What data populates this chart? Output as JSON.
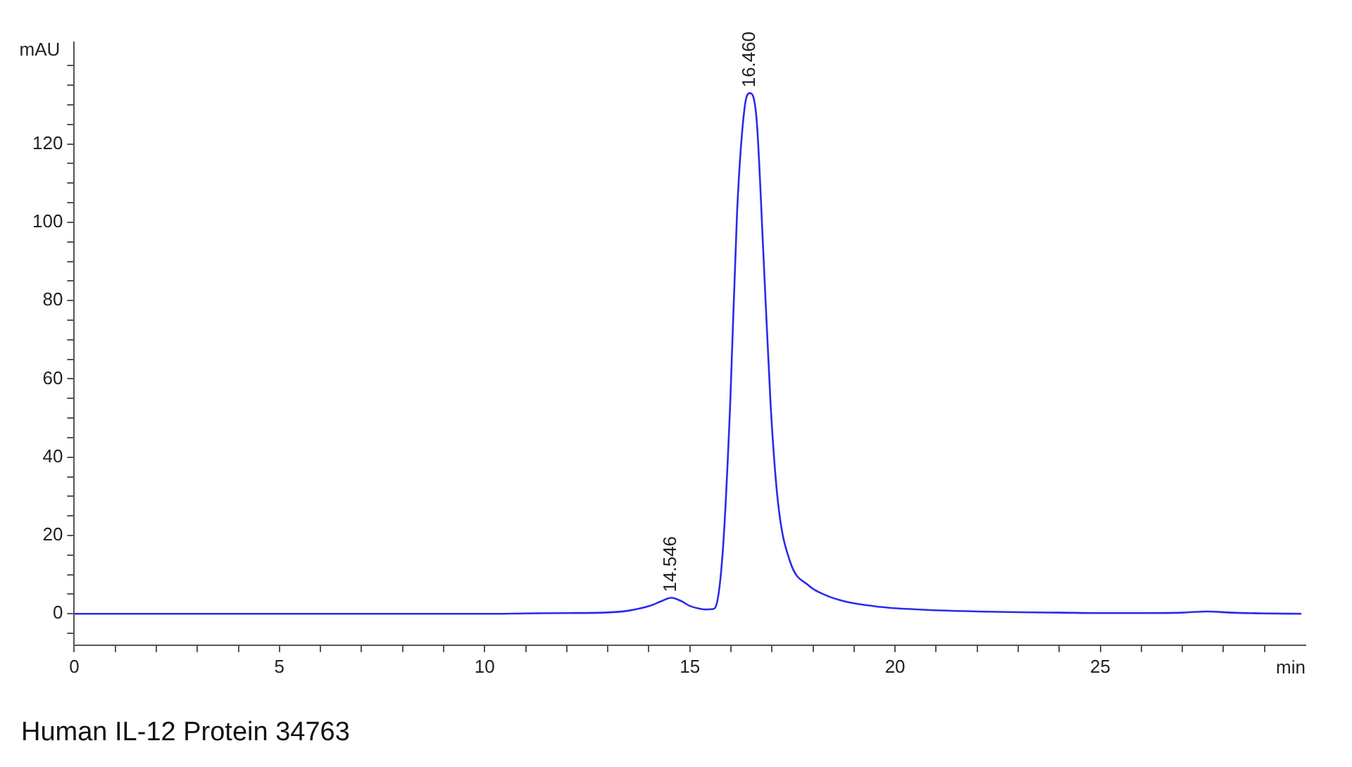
{
  "chart_data": {
    "type": "line",
    "xlabel": "min",
    "ylabel": "mAU",
    "xlim": [
      0,
      30
    ],
    "ylim": [
      -8,
      146
    ],
    "xticks": [
      0,
      {
        "value": 1,
        "label": null
      },
      {
        "value": 2,
        "label": null
      },
      {
        "value": 3,
        "label": null
      },
      {
        "value": 4,
        "label": null
      },
      5,
      {
        "value": 6,
        "label": null
      },
      {
        "value": 7,
        "label": null
      },
      {
        "value": 8,
        "label": null
      },
      {
        "value": 9,
        "label": null
      },
      10,
      {
        "value": 11,
        "label": null
      },
      {
        "value": 12,
        "label": null
      },
      {
        "value": 13,
        "label": null
      },
      {
        "value": 14,
        "label": null
      },
      15,
      {
        "value": 16,
        "label": null
      },
      {
        "value": 17,
        "label": null
      },
      {
        "value": 18,
        "label": null
      },
      {
        "value": 19,
        "label": null
      },
      20,
      {
        "value": 21,
        "label": null
      },
      {
        "value": 22,
        "label": null
      },
      {
        "value": 23,
        "label": null
      },
      {
        "value": 24,
        "label": null
      },
      25,
      {
        "value": 26,
        "label": null
      },
      {
        "value": 27,
        "label": null
      },
      {
        "value": 28,
        "label": null
      },
      {
        "value": 29,
        "label": null
      }
    ],
    "yticks": [
      {
        "value": -5,
        "label": null
      },
      0,
      {
        "value": 5,
        "label": null
      },
      {
        "value": 10,
        "label": null
      },
      {
        "value": 15,
        "label": null
      },
      20,
      {
        "value": 25,
        "label": null
      },
      {
        "value": 30,
        "label": null
      },
      {
        "value": 35,
        "label": null
      },
      40,
      {
        "value": 45,
        "label": null
      },
      {
        "value": 50,
        "label": null
      },
      {
        "value": 55,
        "label": null
      },
      60,
      {
        "value": 65,
        "label": null
      },
      {
        "value": 70,
        "label": null
      },
      {
        "value": 75,
        "label": null
      },
      80,
      {
        "value": 85,
        "label": null
      },
      {
        "value": 90,
        "label": null
      },
      {
        "value": 95,
        "label": null
      },
      100,
      {
        "value": 105,
        "label": null
      },
      {
        "value": 110,
        "label": null
      },
      {
        "value": 115,
        "label": null
      },
      120,
      {
        "value": 125,
        "label": null
      },
      {
        "value": 130,
        "label": null
      },
      {
        "value": 135,
        "label": null
      },
      {
        "value": 140,
        "label": null
      }
    ],
    "grid": false,
    "legend": false,
    "marker": "none",
    "line_style": "solid",
    "series": [
      {
        "color": "#2b2bea",
        "x": [
          0,
          2,
          4,
          6,
          8,
          10,
          11,
          12,
          12.9,
          13.5,
          14.05,
          14.3,
          14.546,
          14.8,
          14.98,
          15.2,
          15.39,
          15.55,
          15.62,
          15.8,
          15.98,
          16.15,
          16.33,
          16.46,
          16.62,
          16.8,
          16.97,
          17.15,
          17.44,
          17.91,
          18.3,
          18.73,
          19.3,
          19.9,
          21,
          22,
          23,
          24,
          25,
          26,
          27,
          27.6,
          28.2,
          29,
          29.9
        ],
        "values": [
          0,
          0,
          0,
          0,
          0,
          0,
          0.1,
          0.2,
          0.3,
          0.8,
          2.1,
          3.2,
          4.1,
          3.2,
          2.1,
          1.4,
          1.1,
          1.2,
          1.6,
          15.7,
          52.9,
          102.5,
          129,
          133,
          127,
          90,
          52.9,
          28.2,
          13.4,
          7.1,
          4.8,
          3.3,
          2.2,
          1.5,
          0.9,
          0.6,
          0.4,
          0.3,
          0.2,
          0.2,
          0.3,
          0.6,
          0.3,
          0.1,
          0
        ]
      }
    ],
    "annotations": [
      {
        "text": "14.546",
        "x": 14.546,
        "y": 4.1
      },
      {
        "text": "16.460",
        "x": 16.46,
        "y": 133
      },
      "Human IL-12 Protein 34763"
    ]
  }
}
